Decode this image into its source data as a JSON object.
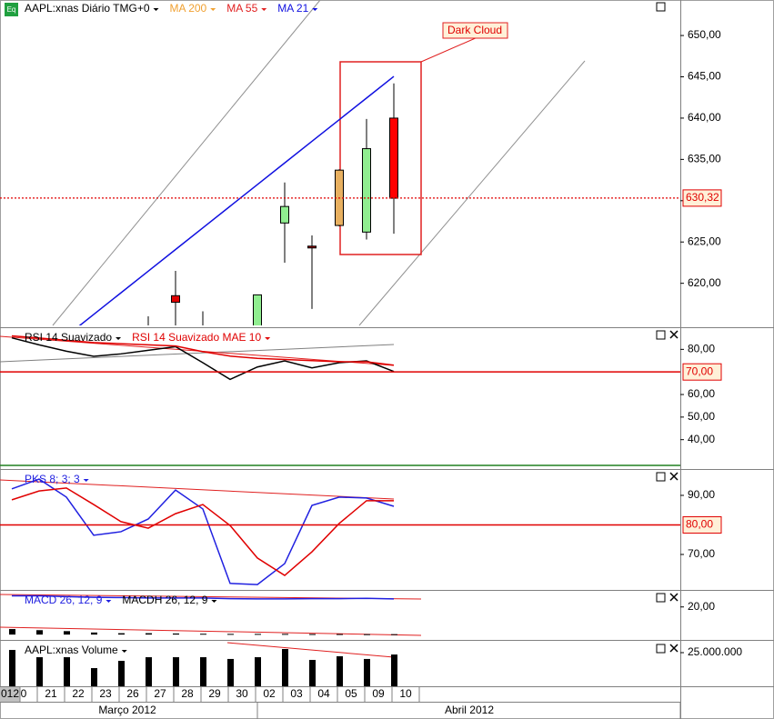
{
  "x_axis": {
    "categories": [
      "012",
      "0",
      "21",
      "22",
      "23",
      "26",
      "27",
      "28",
      "29",
      "30",
      "02",
      "03",
      "04",
      "05",
      "09",
      "10"
    ],
    "months": [
      "Março 2012",
      "Abril 2012"
    ]
  },
  "chart_data": [
    {
      "type": "candlestick",
      "icon": "Eq",
      "title": "AAPL:xnas Diário TMG+0",
      "open": [
        null,
        null,
        null,
        null,
        null,
        null,
        null,
        618.5,
        null,
        null,
        614.0,
        627.3,
        624.5,
        627.0,
        626.2,
        640.0
      ],
      "high": [
        null,
        null,
        null,
        null,
        null,
        null,
        616.0,
        621.5,
        616.6,
        null,
        618.6,
        632.2,
        625.8,
        633.8,
        639.9,
        644.2
      ],
      "low": [
        null,
        null,
        null,
        null,
        null,
        null,
        614.0,
        614.0,
        614.0,
        null,
        614.0,
        622.5,
        616.9,
        626.9,
        625.3,
        626.0
      ],
      "close": [
        null,
        null,
        null,
        null,
        null,
        null,
        null,
        617.7,
        null,
        null,
        618.6,
        629.3,
        624.3,
        633.7,
        636.3,
        630.3
      ],
      "body_colors": [
        null,
        null,
        null,
        null,
        null,
        null,
        null,
        "#e00000",
        null,
        null,
        "#90ee90",
        "#90ee90",
        "#a00000",
        "#e8b060",
        "#90ee90",
        "#ff0000"
      ],
      "series": [
        {
          "name": "MA 200",
          "color": "#f0a030"
        },
        {
          "name": "MA 55",
          "color": "#e02020"
        },
        {
          "name": "MA 21",
          "color": "#1010e0",
          "values": [
            null,
            null,
            null,
            613.6,
            616.23,
            618.85,
            621.47,
            624.09,
            626.71,
            629.33,
            631.95,
            634.57,
            637.19,
            639.81,
            642.43,
            645.05
          ]
        }
      ],
      "ylim": [
        614.9,
        654.3
      ],
      "yticks": [
        {
          "value": 620,
          "label": "620,00"
        },
        {
          "value": 625,
          "label": "625,00"
        },
        {
          "value": 630,
          "label": "630,00"
        },
        {
          "value": 635,
          "label": "635,00"
        },
        {
          "value": 640,
          "label": "640,00"
        },
        {
          "value": 645,
          "label": "645,00"
        },
        {
          "value": 650,
          "label": "650,00"
        }
      ],
      "reference": {
        "value": 630.32,
        "label": "630,32",
        "color": "#e00000",
        "dotted": true
      },
      "annotation": "Dark Cloud"
    },
    {
      "type": "line",
      "series": [
        {
          "name": "RSI 14 Suavizado",
          "color": "#000000",
          "values": [
            null,
            85.1,
            82.0,
            79.2,
            76.9,
            78.0,
            79.6,
            81.2,
            74.1,
            66.7,
            72.2,
            74.9,
            71.8,
            74.1,
            74.9,
            70.2
          ]
        },
        {
          "name": "RSI 14 Suavizado MAE 10",
          "color": "#e00000",
          "values": [
            null,
            86,
            85,
            84,
            83,
            82.5,
            82,
            81.5,
            79,
            77,
            76,
            75.5,
            75,
            74.5,
            74.5,
            73
          ]
        }
      ],
      "ylim": [
        29,
        89
      ],
      "yticks": [
        {
          "value": 40,
          "label": "40,00"
        },
        {
          "value": 50,
          "label": "50,00"
        },
        {
          "value": 60,
          "label": "60,00"
        },
        {
          "value": 80,
          "label": "80,00"
        }
      ],
      "reference": {
        "value": 70,
        "label": "70,00",
        "color": "#e00000",
        "dotted": false
      }
    },
    {
      "type": "line",
      "series": [
        {
          "name": "PKS 8; 3; 3",
          "color": "#2020e0",
          "values": [
            null,
            92.2,
            95.5,
            89.4,
            76.5,
            77.7,
            82.0,
            91.8,
            85.4,
            60.2,
            59.8,
            66.9,
            86.6,
            89.4,
            89.1,
            86.3
          ]
        },
        {
          "color": "#e00000",
          "values": [
            null,
            88.5,
            91.5,
            92.5,
            86.9,
            81.1,
            78.9,
            83.8,
            86.9,
            79.8,
            68.8,
            62.9,
            70.9,
            80.5,
            88.2,
            88.2
          ]
        }
      ],
      "ylim": [
        58.3,
        98.3
      ],
      "yticks": [
        {
          "value": 70,
          "label": "70,00"
        },
        {
          "value": 90,
          "label": "90,00"
        }
      ],
      "reference": {
        "value": 80,
        "label": "80,00",
        "color": "#e00000",
        "dotted": false
      }
    },
    {
      "type": "line",
      "series": [
        {
          "name": "MACD 26, 12, 9",
          "color": "#2020e0",
          "values": [
            null,
            28,
            28,
            27.5,
            27,
            26.8,
            26.5,
            26.5,
            26.5,
            26,
            25.8,
            25.8,
            26,
            26,
            26.2,
            25.8
          ]
        },
        {
          "name": "MACDH 26, 12, 9",
          "color": "#000000",
          "kind": "bar",
          "values": [
            null,
            4,
            3.2,
            2.5,
            1.5,
            1,
            1,
            0.8,
            0.6,
            0.5,
            0.5,
            0.5,
            0.4,
            0.4,
            0.3,
            0.3
          ]
        }
      ],
      "ylim": [
        -3.2,
        31.0
      ],
      "yticks": [
        {
          "value": 20,
          "label": "20,00"
        }
      ]
    },
    {
      "type": "bar",
      "series": [
        {
          "name": "AAPL:xnas Volume",
          "color": "#000000",
          "kind": "bar",
          "values": [
            null,
            27000000,
            21600000,
            21600000,
            13500000,
            18900000,
            21600000,
            21600000,
            21600000,
            20300000,
            21600000,
            27700000,
            19600000,
            22300000,
            20300000,
            23600000
          ]
        }
      ],
      "ylim": [
        0,
        33100000
      ],
      "yticks": [
        {
          "value": 25000000,
          "label": "25.000.000"
        }
      ]
    }
  ]
}
